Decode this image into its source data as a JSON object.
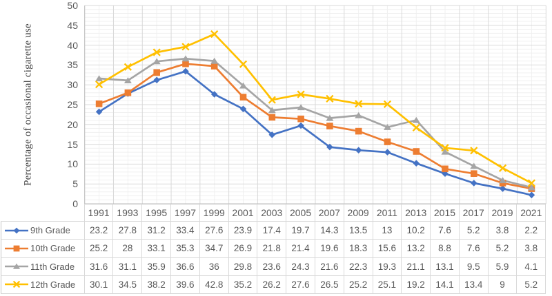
{
  "chart_data": {
    "type": "line",
    "title": "",
    "xlabel": "",
    "ylabel": "Percentage of occasional cigarette use",
    "ylim": [
      0,
      50
    ],
    "ytick_step": 5,
    "yticks": [
      0,
      5,
      10,
      15,
      20,
      25,
      30,
      35,
      40,
      45,
      50
    ],
    "minor_y_step": 1,
    "grid": "major and minor gridlines, horizontal and vertical",
    "legend_position": "left column of attached data table",
    "categories": [
      "1991",
      "1993",
      "1995",
      "1997",
      "1999",
      "2001",
      "2003",
      "2005",
      "2007",
      "2009",
      "2011",
      "2013",
      "2015",
      "2017",
      "2019",
      "2021"
    ],
    "series": [
      {
        "name": "9th Grade",
        "color": "#4472C4",
        "marker": "diamond",
        "values": [
          23.2,
          27.8,
          31.2,
          33.4,
          27.6,
          23.9,
          17.4,
          19.7,
          14.3,
          13.5,
          13,
          10.2,
          7.6,
          5.2,
          3.8,
          2.2
        ]
      },
      {
        "name": "10th Grade",
        "color": "#ED7D31",
        "marker": "square",
        "values": [
          25.2,
          28,
          33.1,
          35.3,
          34.7,
          26.9,
          21.8,
          21.4,
          19.6,
          18.3,
          15.6,
          13.2,
          8.8,
          7.6,
          5.2,
          3.8
        ]
      },
      {
        "name": "11th Grade",
        "color": "#A5A5A5",
        "marker": "triangle",
        "values": [
          31.6,
          31.1,
          35.9,
          36.6,
          36,
          29.8,
          23.6,
          24.3,
          21.6,
          22.3,
          19.3,
          21.1,
          13.1,
          9.5,
          5.9,
          4.1
        ]
      },
      {
        "name": "12th Grade",
        "color": "#FFC000",
        "marker": "x",
        "values": [
          30.1,
          34.5,
          38.2,
          39.6,
          42.8,
          35.2,
          26.2,
          27.6,
          26.5,
          25.2,
          25.1,
          19.2,
          14.1,
          13.4,
          9,
          5.2
        ]
      }
    ]
  },
  "style": {
    "grid_major_color": "#D9D9D9",
    "grid_minor_color": "#F0F0F0",
    "axis_line_color": "#BFBFBF",
    "table_border_color": "#D9D9D9",
    "text_color": "#595959"
  }
}
